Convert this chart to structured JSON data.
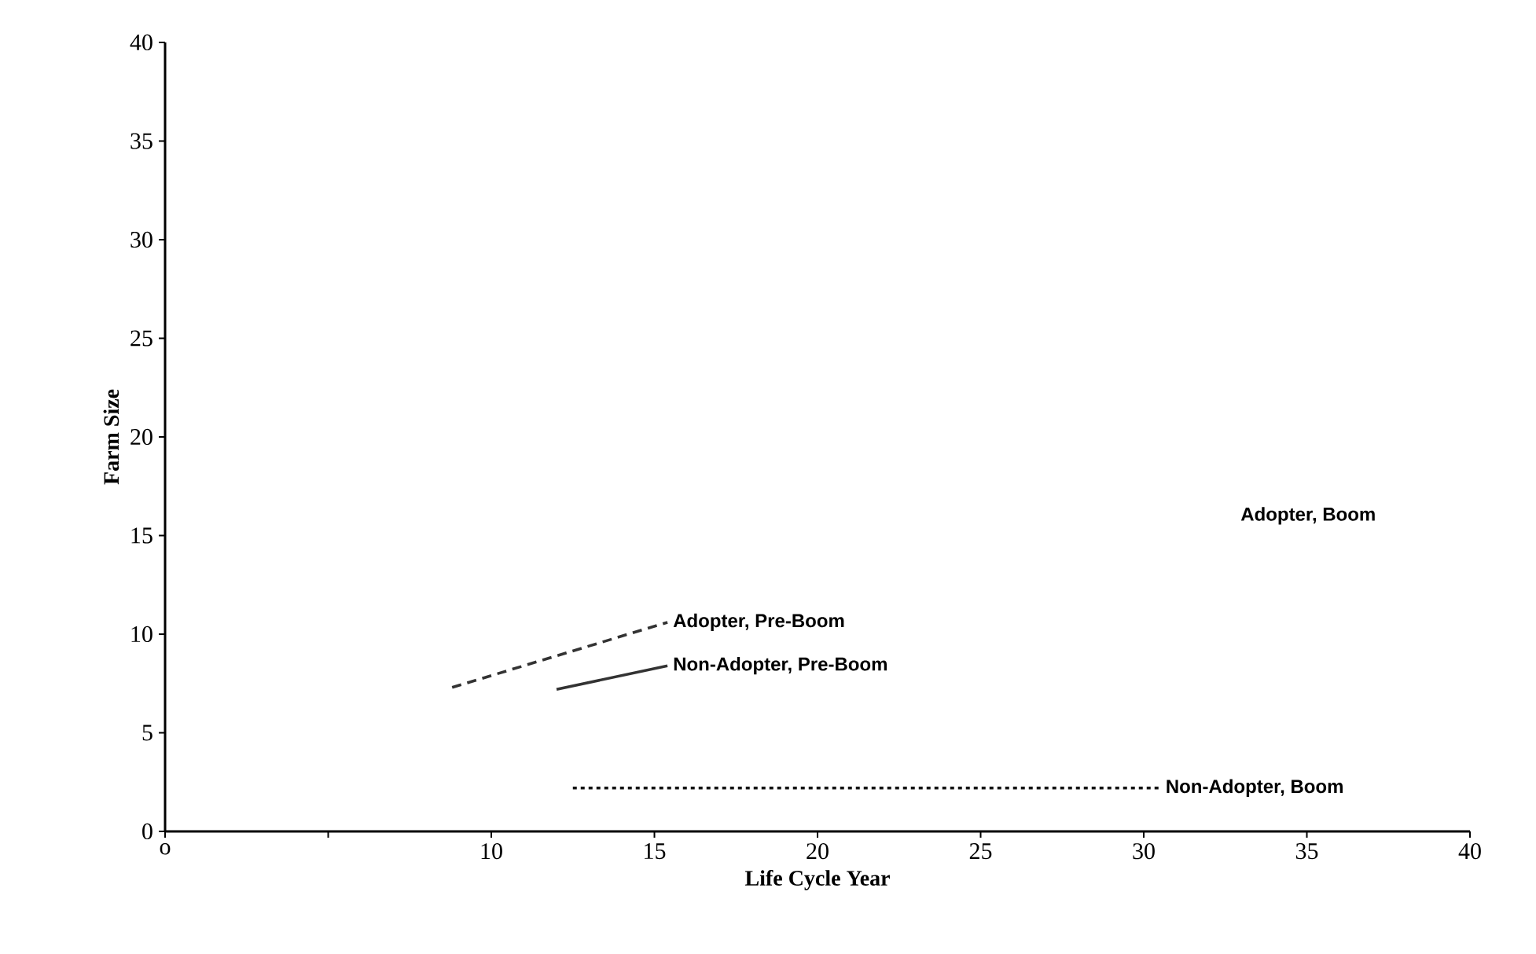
{
  "chart_data": {
    "type": "line",
    "xlabel": "Life Cycle Year",
    "ylabel": "Farm Size",
    "xlim": [
      0,
      40
    ],
    "xticks": [
      {
        "value": 0,
        "label": "o"
      },
      {
        "value": 5,
        "label": null
      },
      10,
      15,
      20,
      25,
      30,
      35,
      40
    ],
    "ylim": [
      0,
      40
    ],
    "yticks": [
      0,
      5,
      10,
      15,
      20,
      25,
      30,
      35,
      40
    ],
    "series": [
      {
        "name": "Adopter, Pre-Boom",
        "color": "#333333",
        "line_style": "dashed",
        "x": [
          8.8,
          15.4
        ],
        "values": [
          7.3,
          10.6
        ]
      },
      {
        "name": "Non-Adopter, Pre-Boom",
        "color": "#333333",
        "line_style": "solid",
        "x": [
          12,
          15.4
        ],
        "values": [
          7.2,
          8.4
        ]
      },
      {
        "name": "Non-Adopter, Boom",
        "color": "#111111",
        "line_style": "dotted",
        "x": [
          12.5,
          30.5
        ],
        "values": [
          2.2,
          2.2
        ]
      }
    ],
    "annotations": [
      "Adopter, Boom"
    ],
    "grid": false,
    "legend": false,
    "marker": "none"
  }
}
